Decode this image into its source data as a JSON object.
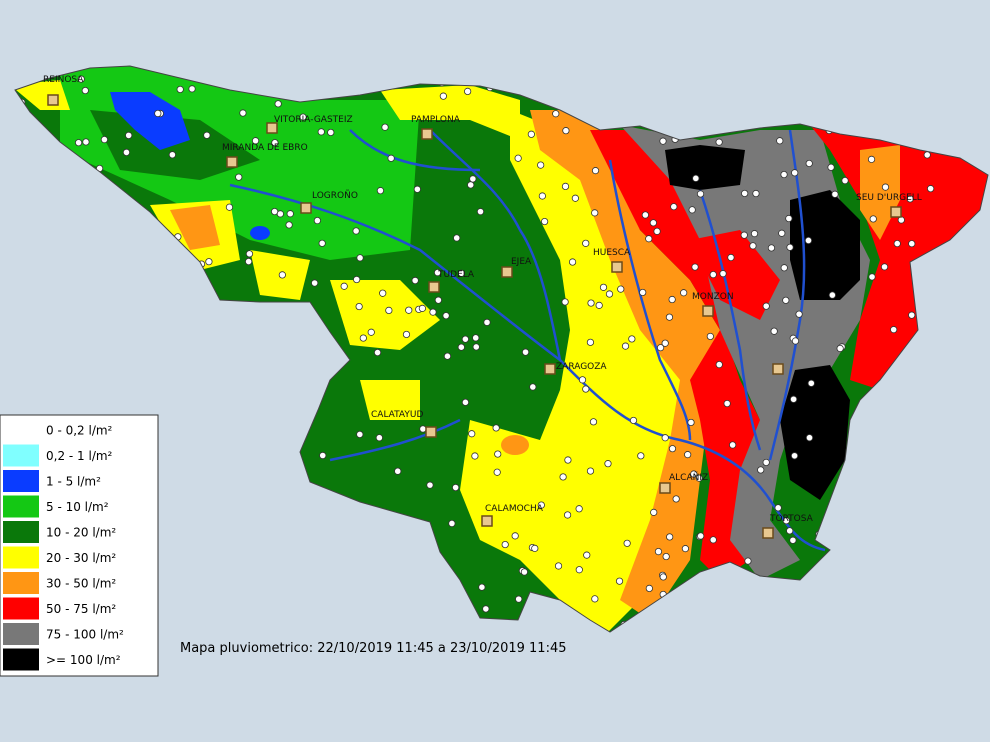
{
  "map": {
    "cities": [
      {
        "label": "REINOSA"
      },
      {
        "label": "VITORIA-GASTEIZ"
      },
      {
        "label": "PAMPLONA"
      },
      {
        "label": "MIRANDA DE EBRO"
      },
      {
        "label": "LOGROÑO"
      },
      {
        "label": "TUDELA"
      },
      {
        "label": "EJEA"
      },
      {
        "label": "HUESCA"
      },
      {
        "label": "MONZON"
      },
      {
        "label": "SEU D'URGELL"
      },
      {
        "label": "ZARAGOZA"
      },
      {
        "label": "CALATAYUD"
      },
      {
        "label": "ALCAÑIZ"
      },
      {
        "label": "CALAMOCHA"
      },
      {
        "label": "TORTOSA"
      }
    ],
    "legend": [
      {
        "label": "0 - 0,2 l/m²",
        "color": "#ffffff"
      },
      {
        "label": "0,2 - 1 l/m²",
        "color": "#80ffff"
      },
      {
        "label": "1 - 5 l/m²",
        "color": "#0a3cff"
      },
      {
        "label": "5 - 10 l/m²",
        "color": "#14c814"
      },
      {
        "label": "10 - 20 l/m²",
        "color": "#0a780a"
      },
      {
        "label": "20 - 30 l/m²",
        "color": "#ffff00"
      },
      {
        "label": "30 - 50 l/m²",
        "color": "#ff9614"
      },
      {
        "label": "50 - 75 l/m²",
        "color": "#ff0000"
      },
      {
        "label": "75 - 100 l/m²",
        "color": "#787878"
      },
      {
        "label": ">= 100 l/m²",
        "color": "#000000"
      }
    ],
    "caption": "Mapa pluviometrico: 22/10/2019 11:45 a 23/10/2019 11:45"
  }
}
